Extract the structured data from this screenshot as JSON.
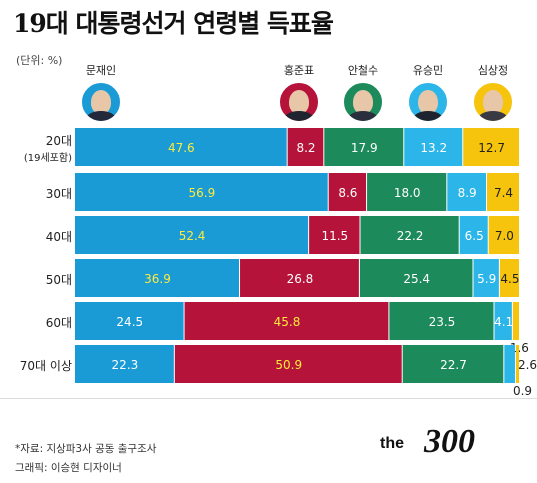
{
  "title": "19대 대통령선거 연령별 득표율",
  "unit": "(단위: %)",
  "candidates": [
    {
      "name": "문재인",
      "color": "#1a9bd6"
    },
    {
      "name": "홍준표",
      "color": "#b5133a"
    },
    {
      "name": "안철수",
      "color": "#1c8a5a"
    },
    {
      "name": "유승민",
      "color": "#2bb5e8"
    },
    {
      "name": "심상정",
      "color": "#f6c40c"
    }
  ],
  "chart_data": {
    "type": "bar",
    "stacked": true,
    "orientation": "horizontal",
    "title": "19대 대통령선거 연령별 득표율",
    "categories": [
      "20대",
      "30대",
      "40대",
      "50대",
      "60대",
      "70대 이상"
    ],
    "category_sublabels": [
      "(19세포함)",
      "",
      "",
      "",
      "",
      ""
    ],
    "series": [
      {
        "name": "문재인",
        "values": [
          47.6,
          56.9,
          52.4,
          36.9,
          24.5,
          22.3
        ]
      },
      {
        "name": "홍준표",
        "values": [
          8.2,
          8.6,
          11.5,
          26.8,
          45.8,
          50.9
        ]
      },
      {
        "name": "안철수",
        "values": [
          17.9,
          18.0,
          22.2,
          25.4,
          23.5,
          22.7
        ]
      },
      {
        "name": "유승민",
        "values": [
          13.2,
          8.9,
          6.5,
          5.9,
          4.1,
          2.6
        ]
      },
      {
        "name": "심상정",
        "values": [
          12.7,
          7.4,
          7.0,
          4.5,
          1.6,
          0.9
        ]
      }
    ],
    "highlight_color": "#ffeb3b"
  },
  "footer": {
    "source": "*자료: 지상파3사 공동 출구조사",
    "credit": "그래픽: 이승현 디자이너"
  },
  "logo": {
    "text_small": "the",
    "text_big": "300"
  }
}
